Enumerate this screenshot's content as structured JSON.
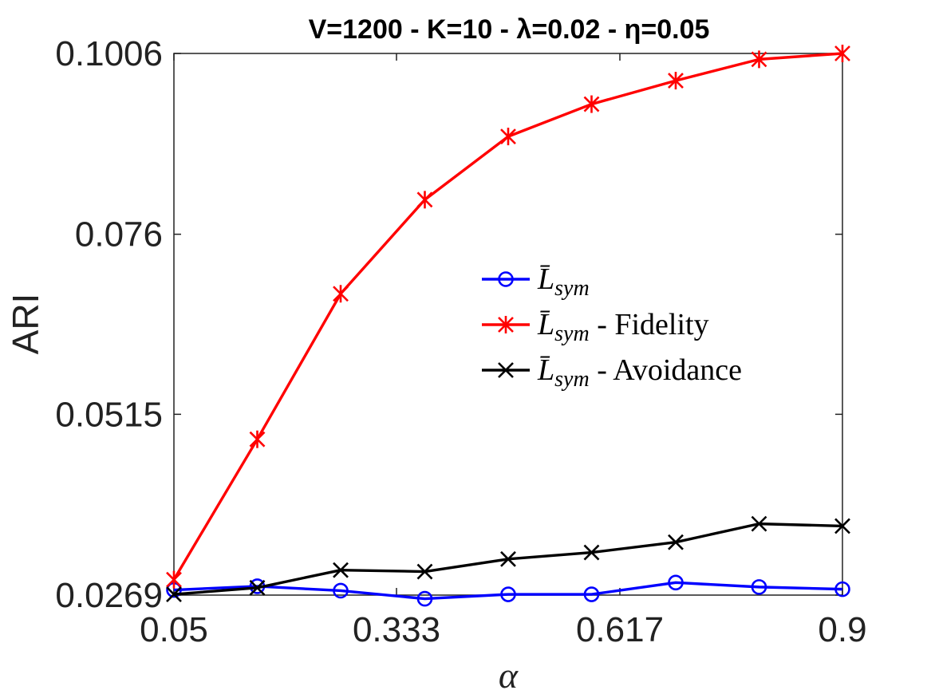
{
  "chart_data": {
    "type": "line",
    "title": "V=1200 - K=10 - λ=0.02 - η=0.05",
    "xlabel": "α",
    "ylabel": "ARI",
    "xlim": [
      0.05,
      0.9
    ],
    "ylim": [
      0.0269,
      0.1006
    ],
    "xticks": [
      "0.05",
      "0.333",
      "0.617",
      "0.9"
    ],
    "xtick_values": [
      0.05,
      0.333,
      0.617,
      0.9
    ],
    "yticks": [
      "0.0269",
      "0.0515",
      "0.076",
      "0.1006"
    ],
    "ytick_values": [
      0.0269,
      0.0515,
      0.076,
      0.1006
    ],
    "x": [
      0.05,
      0.156,
      0.262,
      0.369,
      0.475,
      0.581,
      0.688,
      0.794,
      0.9
    ],
    "series": [
      {
        "name": "L̄sym",
        "legend_base": "L̄",
        "legend_sub": "sym",
        "legend_suffix": "",
        "color": "#0000ff",
        "marker": "circle",
        "values": [
          0.0276,
          0.0281,
          0.0275,
          0.0264,
          0.027,
          0.027,
          0.0286,
          0.028,
          0.0277
        ]
      },
      {
        "name": "L̄sym - Fidelity",
        "legend_base": "L̄",
        "legend_sub": "sym",
        "legend_suffix": " - Fidelity",
        "color": "#ff0000",
        "marker": "asterisk",
        "values": [
          0.029,
          0.0481,
          0.0679,
          0.0807,
          0.0893,
          0.0937,
          0.0969,
          0.0998,
          0.1006
        ]
      },
      {
        "name": "L̄sym - Avoidance",
        "legend_base": "L̄",
        "legend_sub": "sym",
        "legend_suffix": " - Avoidance",
        "color": "#000000",
        "marker": "x",
        "values": [
          0.027,
          0.0279,
          0.0303,
          0.0301,
          0.0318,
          0.0327,
          0.0341,
          0.0366,
          0.0363
        ]
      }
    ],
    "legend_position": "center-right",
    "grid": false
  }
}
